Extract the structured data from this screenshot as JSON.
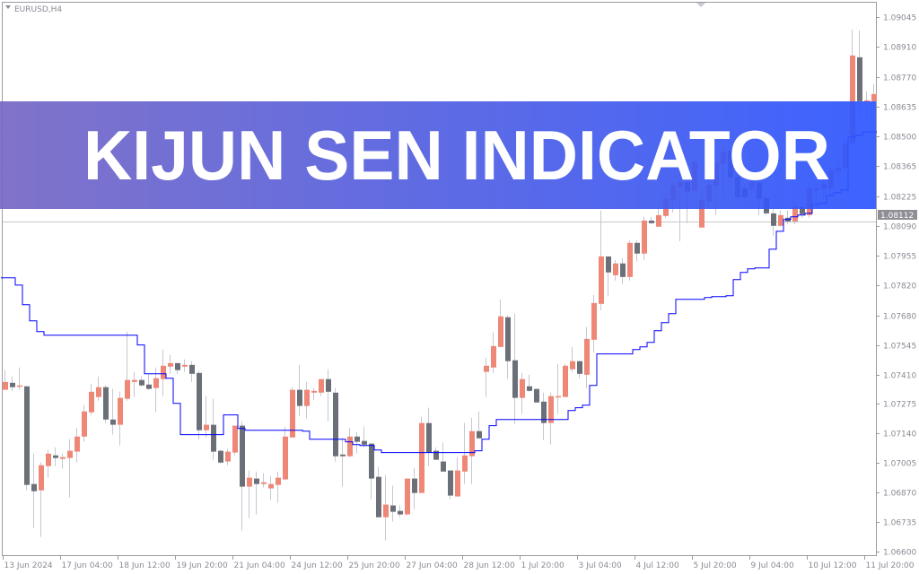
{
  "window": {
    "symbol_label": "EURUSD,H4"
  },
  "banner": {
    "title": "KIJUN SEN INDICATOR",
    "color_left": "#7567c4",
    "color_right": "#2c55ff"
  },
  "current_price_label": "1.08112",
  "colors": {
    "bull": "#ef8777",
    "bear": "#6b7078",
    "wick": "#c6c8d0",
    "kijun": "#0000ff",
    "grid_axis": "#9a9aa2"
  },
  "chart_data": {
    "type": "candlestick",
    "symbol": "EURUSD",
    "timeframe": "H4",
    "ylim": [
      1.066,
      1.09045
    ],
    "y_ticks": [
      "1.09045",
      "1.08910",
      "1.08770",
      "1.08635",
      "1.08500",
      "1.08365",
      "1.08225",
      "1.08090",
      "1.07955",
      "1.07820",
      "1.07680",
      "1.07545",
      "1.07410",
      "1.07275",
      "1.07140",
      "1.07005",
      "1.06870",
      "1.06735",
      "1.06600"
    ],
    "x_ticks": [
      "13 Jun 2024",
      "17 Jun 04:00",
      "18 Jun 12:00",
      "19 Jun 20:00",
      "21 Jun 04:00",
      "24 Jun 12:00",
      "25 Jun 20:00",
      "27 Jun 04:00",
      "28 Jun 12:00",
      "1 Jul 20:00",
      "3 Jul 04:00",
      "4 Jul 12:00",
      "5 Jul 20:00",
      "9 Jul 04:00",
      "10 Jul 12:00",
      "11 Jul 20:00"
    ],
    "ohlc_fields": [
      "open",
      "high",
      "low",
      "close"
    ],
    "candles": [
      [
        1.0734,
        1.0743,
        1.0734,
        1.07376
      ],
      [
        1.07372,
        1.07401,
        1.07335,
        1.07352
      ],
      [
        1.07356,
        1.07442,
        1.0734,
        1.0736
      ],
      [
        1.07356,
        1.07356,
        1.0688,
        1.06905
      ],
      [
        1.06909,
        1.07048,
        1.06708,
        1.06876
      ],
      [
        1.0688,
        1.07007,
        1.06667,
        1.06995
      ],
      [
        1.06991,
        1.07065,
        1.06938,
        1.07048
      ],
      [
        1.0704,
        1.07077,
        1.06991,
        1.07028
      ],
      [
        1.07024,
        1.07048,
        1.06979,
        1.07032
      ],
      [
        1.07028,
        1.07114,
        1.06848,
        1.07061
      ],
      [
        1.07057,
        1.07167,
        1.07007,
        1.07126
      ],
      [
        1.07126,
        1.0727,
        1.07102,
        1.07241
      ],
      [
        1.07237,
        1.07368,
        1.07225,
        1.07331
      ],
      [
        1.07307,
        1.07401,
        1.0729,
        1.07352
      ],
      [
        1.07352,
        1.0736,
        1.07188,
        1.07204
      ],
      [
        1.07204,
        1.07344,
        1.07135,
        1.0718
      ],
      [
        1.0718,
        1.07331,
        1.07085,
        1.07303
      ],
      [
        1.07299,
        1.07606,
        1.0729,
        1.07385
      ],
      [
        1.07376,
        1.07422,
        1.07307,
        1.07385
      ],
      [
        1.07385,
        1.07401,
        1.07356,
        1.0736
      ],
      [
        1.07364,
        1.07413,
        1.0734,
        1.07344
      ],
      [
        1.07348,
        1.07442,
        1.07237,
        1.07393
      ],
      [
        1.07389,
        1.07524,
        1.07311,
        1.0745
      ],
      [
        1.07446,
        1.07499,
        1.07413,
        1.07462
      ],
      [
        1.07462,
        1.07462,
        1.07413,
        1.0743
      ],
      [
        1.07446,
        1.07479,
        1.07422,
        1.07454
      ],
      [
        1.07454,
        1.07471,
        1.07376,
        1.07413
      ],
      [
        1.07417,
        1.07426,
        1.07114,
        1.07155
      ],
      [
        1.07155,
        1.07311,
        1.07122,
        1.0718
      ],
      [
        1.0718,
        1.07299,
        1.0702,
        1.07057
      ],
      [
        1.07061,
        1.07065,
        1.07003,
        1.07007
      ],
      [
        1.07012,
        1.07069,
        1.06995,
        1.07057
      ],
      [
        1.07053,
        1.07176,
        1.0704,
        1.07176
      ],
      [
        1.07176,
        1.07196,
        1.06696,
        1.06897
      ],
      [
        1.06897,
        1.06971,
        1.06753,
        1.06938
      ],
      [
        1.06934,
        1.06966,
        1.0677,
        1.06909
      ],
      [
        1.06909,
        1.06958,
        1.06893,
        1.06917
      ],
      [
        1.06889,
        1.06946,
        1.06835,
        1.06909
      ],
      [
        1.06905,
        1.06966,
        1.06823,
        1.06938
      ],
      [
        1.0693,
        1.07171,
        1.0693,
        1.07126
      ],
      [
        1.07122,
        1.07352,
        1.07122,
        1.0734
      ],
      [
        1.0734,
        1.07454,
        1.07221,
        1.07266
      ],
      [
        1.07266,
        1.07376,
        1.07208,
        1.0734
      ],
      [
        1.07327,
        1.07348,
        1.07294,
        1.07335
      ],
      [
        1.07327,
        1.07389,
        1.07311,
        1.07389
      ],
      [
        1.07389,
        1.07434,
        1.07196,
        1.07331
      ],
      [
        1.07327,
        1.07348,
        1.07012,
        1.07036
      ],
      [
        1.07044,
        1.07122,
        1.06897,
        1.07036
      ],
      [
        1.07036,
        1.07167,
        1.07032,
        1.07126
      ],
      [
        1.07126,
        1.07147,
        1.07048,
        1.07102
      ],
      [
        1.07106,
        1.07171,
        1.07077,
        1.07089
      ],
      [
        1.07094,
        1.07094,
        1.06839,
        1.06934
      ],
      [
        1.06942,
        1.06987,
        1.06757,
        1.06757
      ],
      [
        1.06757,
        1.0695,
        1.06651,
        1.06815
      ],
      [
        1.06811,
        1.06901,
        1.06737,
        1.06782
      ],
      [
        1.06786,
        1.06811,
        1.06757,
        1.0677
      ],
      [
        1.0677,
        1.06934,
        1.06766,
        1.06934
      ],
      [
        1.06934,
        1.06983,
        1.06794,
        1.06868
      ],
      [
        1.06868,
        1.07217,
        1.06868,
        1.07188
      ],
      [
        1.07188,
        1.07258,
        1.06991,
        1.07053
      ],
      [
        1.07061,
        1.07077,
        1.0702,
        1.0702
      ],
      [
        1.07012,
        1.07098,
        1.06966,
        1.06966
      ],
      [
        1.06971,
        1.06971,
        1.06839,
        1.06856
      ],
      [
        1.06852,
        1.07032,
        1.06852,
        1.06971
      ],
      [
        1.06966,
        1.07188,
        1.06909,
        1.0704
      ],
      [
        1.07036,
        1.07212,
        1.06909,
        1.07151
      ],
      [
        1.07151,
        1.07241,
        1.07118,
        1.07118
      ],
      [
        1.07422,
        1.07487,
        1.07307,
        1.0745
      ],
      [
        1.07442,
        1.07602,
        1.07417,
        1.0754
      ],
      [
        1.07536,
        1.07754,
        1.07536,
        1.07676
      ],
      [
        1.07672,
        1.0768,
        1.07389,
        1.07471
      ],
      [
        1.07475,
        1.07688,
        1.07184,
        1.07303
      ],
      [
        1.07303,
        1.07417,
        1.07229,
        1.07389
      ],
      [
        1.07356,
        1.07409,
        1.07331,
        1.07335
      ],
      [
        1.07344,
        1.07344,
        1.07282,
        1.07282
      ],
      [
        1.07286,
        1.07327,
        1.0711,
        1.07188
      ],
      [
        1.07188,
        1.07327,
        1.07089,
        1.07311
      ],
      [
        1.07307,
        1.07458,
        1.07229,
        1.07311
      ],
      [
        1.07307,
        1.07458,
        1.07307,
        1.0745
      ],
      [
        1.07434,
        1.07536,
        1.07422,
        1.07471
      ],
      [
        1.07471,
        1.07471,
        1.07393,
        1.07413
      ],
      [
        1.07409,
        1.07627,
        1.07348,
        1.07573
      ],
      [
        1.07569,
        1.07774,
        1.07512,
        1.07737
      ],
      [
        1.07733,
        1.0816,
        1.07704,
        1.0795
      ],
      [
        1.0795,
        1.0795,
        1.0777,
        1.07877
      ],
      [
        1.07864,
        1.07934,
        1.0784,
        1.07918
      ],
      [
        1.07918,
        1.07942,
        1.07823,
        1.07856
      ],
      [
        1.07856,
        1.08024,
        1.0784,
        1.08012
      ],
      [
        1.08012,
        1.08024,
        1.07926,
        1.07963
      ],
      [
        1.07963,
        1.08131,
        1.07934,
        1.08114
      ],
      [
        1.08114,
        1.08131,
        1.08098,
        1.08102
      ],
      [
        1.08086,
        1.08168,
        1.08086,
        1.08139
      ],
      [
        1.08135,
        1.08242,
        1.08127,
        1.08213
      ],
      [
        1.08209,
        1.08295,
        1.08151,
        1.08274
      ],
      [
        1.08266,
        1.08377,
        1.0802,
        1.08291
      ],
      [
        1.08291,
        1.08324,
        1.08102,
        1.08246
      ],
      [
        1.0825,
        1.08414,
        1.08242,
        1.08381
      ],
      [
        1.08082,
        1.0825,
        1.08082,
        1.08209
      ],
      [
        1.08201,
        1.08356,
        1.08168,
        1.08278
      ],
      [
        1.08274,
        1.08377,
        1.08139,
        1.08377
      ],
      [
        1.08373,
        1.08447,
        1.08229,
        1.0843
      ],
      [
        1.08434,
        1.08447,
        1.08274,
        1.08311
      ],
      [
        1.08315,
        1.08344,
        1.08201,
        1.08221
      ],
      [
        1.08262,
        1.08283,
        1.08201,
        1.08221
      ],
      [
        1.08258,
        1.08332,
        1.0825,
        1.08291
      ],
      [
        1.08287,
        1.08303,
        1.08139,
        1.08213
      ],
      [
        1.08217,
        1.0825,
        1.08139,
        1.08147
      ],
      [
        1.08147,
        1.08168,
        1.08045,
        1.0809
      ],
      [
        1.0809,
        1.0816,
        1.08086,
        1.08139
      ],
      [
        1.08127,
        1.0816,
        1.08098,
        1.0811
      ],
      [
        1.0811,
        1.08209,
        1.08098,
        1.0818
      ],
      [
        1.08176,
        1.08221,
        1.08127,
        1.08143
      ],
      [
        1.08139,
        1.08274,
        1.08127,
        1.08262
      ],
      [
        1.08254,
        1.08283,
        1.08168,
        1.08262
      ],
      [
        1.08258,
        1.08332,
        1.08221,
        1.08283
      ],
      [
        1.08262,
        1.08356,
        1.08221,
        1.08344
      ],
      [
        1.0834,
        1.08373,
        1.08303,
        1.08356
      ],
      [
        1.08356,
        1.08475,
        1.08344,
        1.08467
      ],
      [
        1.08467,
        1.08988,
        1.08467,
        1.08869
      ],
      [
        1.08861,
        1.08984,
        1.0859,
        1.0866
      ],
      [
        1.0866,
        1.08705,
        1.0859,
        1.08664
      ],
      [
        1.0866,
        1.08738,
        1.08631,
        1.08693
      ]
    ],
    "kijun_sen": [
      1.07852,
      1.07852,
      1.07819,
      1.07729,
      1.07655,
      1.07606,
      1.0759,
      1.0759,
      1.0759,
      1.0759,
      1.0759,
      1.0759,
      1.0759,
      1.0759,
      1.0759,
      1.0759,
      1.0759,
      1.0759,
      1.0759,
      1.07545,
      1.07413,
      1.07413,
      1.07413,
      1.07393,
      1.07278,
      1.07135,
      1.07135,
      1.07135,
      1.07135,
      1.07135,
      1.07135,
      1.07225,
      1.07225,
      1.07163,
      1.07155,
      1.07155,
      1.07155,
      1.07155,
      1.07155,
      1.07155,
      1.07155,
      1.07155,
      1.07151,
      1.07114,
      1.07114,
      1.07114,
      1.07114,
      1.07114,
      1.07102,
      1.07089,
      1.07085,
      1.07085,
      1.07065,
      1.07053,
      1.07053,
      1.07053,
      1.07053,
      1.07053,
      1.07053,
      1.07053,
      1.07053,
      1.07053,
      1.07053,
      1.07053,
      1.07053,
      1.07053,
      1.07061,
      1.07114,
      1.07176,
      1.07204,
      1.07204,
      1.07204,
      1.07204,
      1.07204,
      1.07204,
      1.07204,
      1.07204,
      1.07204,
      1.07204,
      1.07245,
      1.07258,
      1.0727,
      1.0736,
      1.07504,
      1.07504,
      1.07504,
      1.07504,
      1.07504,
      1.07524,
      1.07536,
      1.07557,
      1.0761,
      1.07647,
      1.07688,
      1.07754,
      1.07754,
      1.07754,
      1.07754,
      1.07762,
      1.07766,
      1.07766,
      1.0777,
      1.07844,
      1.07877,
      1.07893,
      1.07897,
      1.07897,
      1.07983,
      1.08065,
      1.08119,
      1.08131,
      1.08139,
      1.08147,
      1.08188,
      1.08192,
      1.08229,
      1.08242,
      1.08254,
      1.08496,
      1.08504,
      1.0852,
      1.0852
    ],
    "current_price": 1.08112,
    "grid": false
  }
}
